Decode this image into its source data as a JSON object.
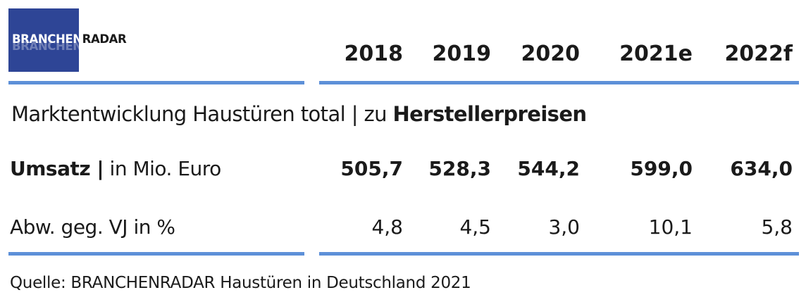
{
  "logo": {
    "part1": "BRANCHEN",
    "part2": "RADAR"
  },
  "chart_data": {
    "type": "table",
    "columns": [
      "2018",
      "2019",
      "2020",
      "2021e",
      "2022f"
    ],
    "title_regular": "Marktentwicklung Haustüren total | zu ",
    "title_bold": "Herstellerpreisen",
    "rows": [
      {
        "label_bold": "Umsatz |",
        "label_regular": " in Mio. Euro",
        "values": [
          "505,7",
          "528,3",
          "544,2",
          "599,0",
          "634,0"
        ]
      },
      {
        "label_bold": "",
        "label_regular": "Abw. geg. VJ in %",
        "values": [
          "4,8",
          "4,5",
          "3,0",
          "10,1",
          "5,8"
        ]
      }
    ],
    "source": "Quelle: BRANCHENRADAR Haustüren in Deutschland 2021",
    "colors": {
      "rule": "#5d90d8",
      "logo_bg": "#2e4596"
    }
  }
}
